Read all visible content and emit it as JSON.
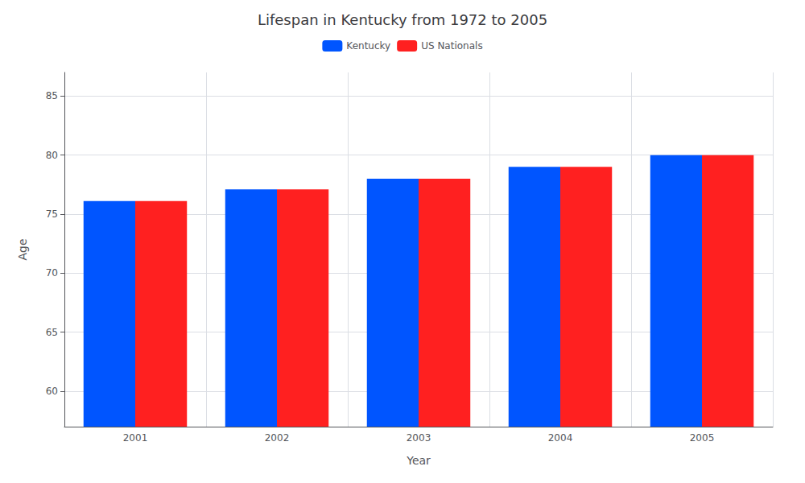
{
  "chart_data": {
    "type": "bar",
    "title": "Lifespan in Kentucky from 1972 to 2005",
    "x_label": "Year",
    "y_label": "Age",
    "categories": [
      "2001",
      "2002",
      "2003",
      "2004",
      "2005"
    ],
    "series": [
      {
        "name": "Kentucky",
        "color": "#0055ff",
        "values": [
          76.1,
          77.1,
          78.0,
          79.0,
          80.0
        ]
      },
      {
        "name": "US Nationals",
        "color": "#ff2020",
        "values": [
          76.1,
          77.1,
          78.0,
          79.0,
          80.0
        ]
      }
    ],
    "ylim": [
      57,
      87
    ],
    "yticks": [
      60,
      65,
      70,
      75,
      80,
      85
    ],
    "grid": true,
    "legend": "top"
  }
}
